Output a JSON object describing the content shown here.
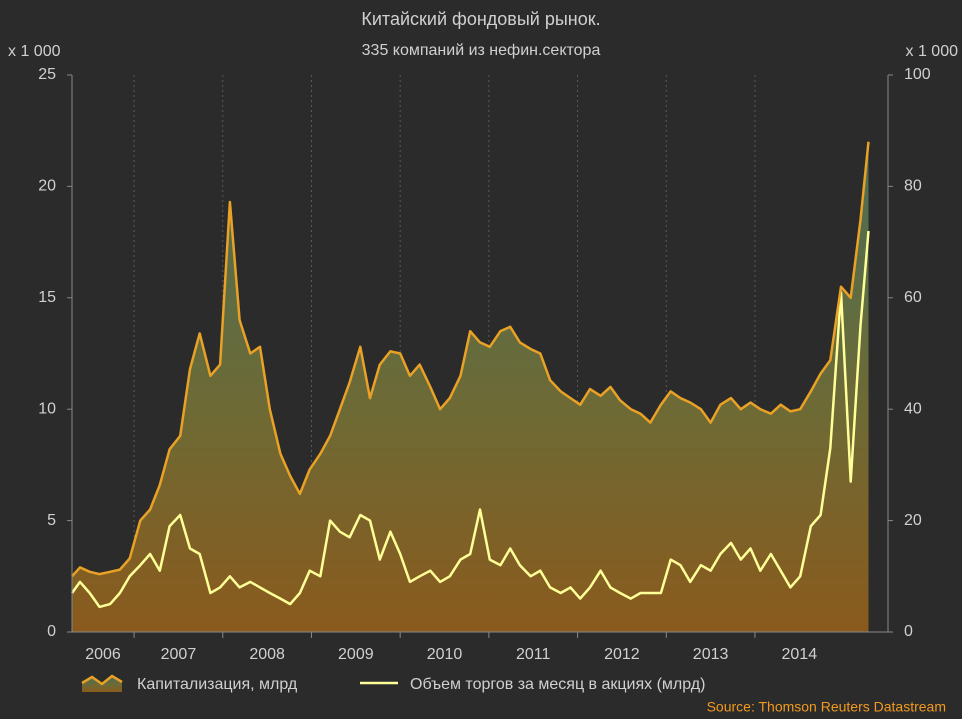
{
  "chart_data": {
    "type": "line",
    "title": "Китайский фондовый рынок.",
    "subtitle": "335 компаний из нефин.сектора",
    "y_unit_label": "x 1 000",
    "y2_unit_label": "x 1 000",
    "source": "Source: Thomson Reuters Datastream",
    "x": [
      2006.3,
      2006.39,
      2006.5,
      2006.61,
      2006.73,
      2006.84,
      2006.95,
      2007.07,
      2007.18,
      2007.29,
      2007.4,
      2007.52,
      2007.63,
      2007.74,
      2007.86,
      2007.97,
      2008.08,
      2008.19,
      2008.31,
      2008.42,
      2008.53,
      2008.65,
      2008.76,
      2008.87,
      2008.98,
      2009.1,
      2009.21,
      2009.32,
      2009.43,
      2009.55,
      2009.66,
      2009.77,
      2009.89,
      2010.0,
      2010.11,
      2010.22,
      2010.34,
      2010.45,
      2010.56,
      2010.68,
      2010.79,
      2010.9,
      2011.01,
      2011.13,
      2011.24,
      2011.35,
      2011.47,
      2011.58,
      2011.69,
      2011.81,
      2011.92,
      2012.03,
      2012.14,
      2012.26,
      2012.37,
      2012.48,
      2012.6,
      2012.71,
      2012.82,
      2012.94,
      2013.05,
      2013.16,
      2013.27,
      2013.39,
      2013.5,
      2013.61,
      2013.73,
      2013.84,
      2013.95,
      2014.06,
      2014.18,
      2014.29,
      2014.4,
      2014.51,
      2014.63,
      2014.74,
      2014.85,
      2014.97,
      2015.08,
      2015.19,
      2015.28
    ],
    "series": [
      {
        "name": "Капитализация, млрд",
        "color": "#e9a126",
        "area": true,
        "values": [
          2.5,
          2.9,
          2.7,
          2.6,
          2.7,
          2.8,
          3.3,
          5.0,
          5.5,
          6.6,
          8.2,
          8.8,
          11.8,
          13.4,
          11.5,
          12.0,
          19.3,
          14.0,
          12.5,
          12.8,
          10.0,
          8.0,
          7.0,
          6.2,
          7.3,
          8.0,
          8.8,
          10.0,
          11.2,
          12.8,
          10.5,
          12.0,
          12.6,
          12.5,
          11.5,
          12.0,
          11.0,
          10.0,
          10.5,
          11.5,
          13.5,
          13.0,
          12.8,
          13.5,
          13.7,
          13.0,
          12.7,
          12.5,
          11.3,
          10.8,
          10.5,
          10.2,
          10.9,
          10.6,
          11.0,
          10.4,
          10.0,
          9.8,
          9.4,
          10.2,
          10.8,
          10.5,
          10.3,
          10.0,
          9.4,
          10.2,
          10.5,
          10.0,
          10.3,
          10.0,
          9.8,
          10.2,
          9.9,
          10.0,
          10.8,
          11.6,
          12.2,
          15.5,
          15.0,
          18.5,
          22.0
        ]
      },
      {
        "name": "Объем торгов за месяц в акциях (млрд)",
        "color": "#ffff99",
        "axis": "y2",
        "values": [
          7,
          9,
          7,
          4.5,
          5,
          7,
          10,
          12,
          14,
          11,
          19,
          21,
          15,
          14,
          7,
          8,
          10,
          8,
          9,
          8,
          7,
          6,
          5,
          7,
          11,
          10,
          20,
          18,
          17,
          21,
          20,
          13,
          18,
          14,
          9,
          10,
          11,
          9,
          10,
          13,
          14,
          22,
          13,
          12,
          15,
          12,
          10,
          11,
          8,
          7,
          8,
          6,
          8,
          11,
          8,
          7,
          6,
          7,
          7,
          7,
          13,
          12,
          9,
          12,
          11,
          14,
          16,
          13,
          15,
          11,
          14,
          11,
          8,
          10,
          19,
          21,
          33,
          61,
          27,
          55,
          72
        ]
      }
    ],
    "xlim": [
      2006.3,
      2015.5
    ],
    "xticks": [
      2006,
      2007,
      2008,
      2009,
      2010,
      2011,
      2012,
      2013,
      2014
    ],
    "ylim": [
      0,
      25
    ],
    "yticks": [
      0,
      5,
      10,
      15,
      20,
      25
    ],
    "y2lim": [
      0,
      100
    ],
    "y2ticks": [
      0,
      20,
      40,
      60,
      80,
      100
    ],
    "grid": "x"
  }
}
